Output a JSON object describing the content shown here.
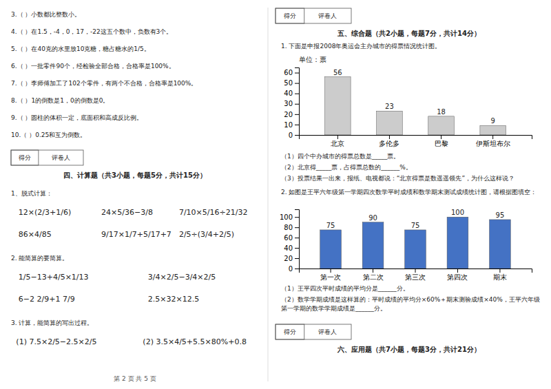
{
  "page": {
    "score_box": [
      "得分",
      "评卷人"
    ],
    "left": {
      "lines": [
        "3.（    ）小数都比整数小。",
        "4.（    ）在1.5，-4，0，17，-22这五个数中，负数有3个。",
        "5.（    ）在40克的水里放10克糖，糖占糖水的1/5。",
        "6.（    ）一批零件90个，经检验全部合格，合格率是100%。",
        "7.（    ）李师傅加工了102个零件，有两个不合格，合格率是100%。",
        "8.（    ）1的倒数是1，0的倒数是0。",
        "9.（    ）圆柱的体积一定，底面积和高成反比例。",
        "10.（    ）0.25和互为倒数。"
      ],
      "section_title": "四、计算题（共3小题，每题5分，共计15分）",
      "q1": "1、脱式计算：",
      "q1_exprs": [
        [
          "12×(2/3+1/6)",
          "24×5/36−3/8",
          "7/10×5/16÷21/32"
        ],
        [
          "86×4/85",
          "9/17×1/7+5/17+7",
          "2/5÷(3/4+2/5)"
        ]
      ],
      "q2": "2. 能简算的要简算。",
      "q2_exprs": [
        [
          "1/5−13+4/5×1/13",
          "3/4×2/5−3/4×2/5"
        ],
        [
          "6−2 2/9+1 7/9",
          "2.5×32×12.5"
        ]
      ],
      "q3": "3. 计算，能简算的写出过程。",
      "q3_exprs": [
        [
          "(1) 7.5×2/5−2.5×2/5",
          "(2) 3.5×4/5+5.5×80%+0.8"
        ]
      ],
      "footer": "第 2 页 共 5 页"
    },
    "right": {
      "section_title": "五、综合题（共2小题，每题7分，共计14分）",
      "q1": "1. 下面是申报2008年奥运会主办城市的得票情况统计图。",
      "q1_questions": [
        "（1）四个中办城市的得票总数是_____票。",
        "（2）北京得_____票，占得票总数的______%。",
        "（3）投票结果一出来，报纸、电视都说：“北京得票是数遥遥领先”，为什么这样说？"
      ],
      "q2": "2. 如图是王平六年级第一学期四次数学平时成绩和数学期末测试成绩统计图，请根据图填空：",
      "q2_questions": [
        "（1）王平四次平时成绩的平均分是______分。",
        "（2）数学学期成绩是这样算的：平时成绩的平均分×60%＋期末测验成绩×40%，王平六年级第一学期的数学学期成绩是______分。"
      ],
      "section6_title": "六、应用题（共7小题，每题3分，共计21分）"
    }
  },
  "chart_data": [
    {
      "type": "bar",
      "title": "单位：票",
      "categories": [
        "北京",
        "多伦多",
        "巴黎",
        "伊斯坦布尔"
      ],
      "values": [
        56,
        23,
        18,
        9
      ],
      "color": "#cccccc",
      "ylim": [
        0,
        65
      ],
      "yticks": [
        0,
        10,
        20,
        30,
        40,
        50,
        60
      ],
      "data_labels": true,
      "grid": false
    },
    {
      "type": "bar",
      "categories": [
        "第一次",
        "第二次",
        "第三次",
        "第四次",
        "期末"
      ],
      "values": [
        75,
        90,
        75,
        100,
        95
      ],
      "color": "#4472c4",
      "ylim": [
        0,
        115
      ],
      "yticks": [
        0,
        20,
        40,
        60,
        80,
        100
      ],
      "data_labels": true,
      "grid": false
    }
  ]
}
